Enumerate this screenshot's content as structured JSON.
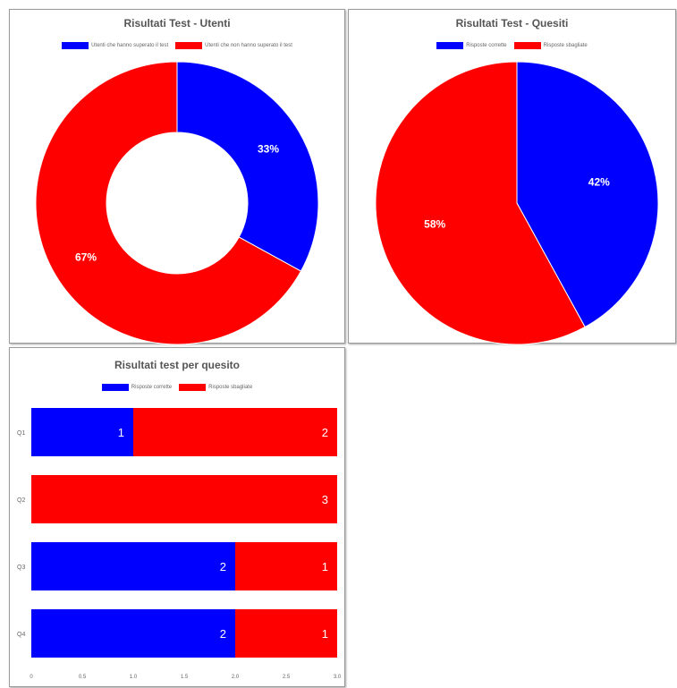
{
  "colors": {
    "blue": "#0000ff",
    "red": "#ff0000"
  },
  "chart_data": [
    {
      "type": "pie",
      "variant": "doughnut",
      "title": "Risultati Test - Utenti",
      "labels": [
        "Utenti che hanno superato il test",
        "Utenti che non hanno superato il test"
      ],
      "values": [
        33,
        67
      ],
      "value_labels": [
        "33%",
        "67%"
      ],
      "colors": [
        "#0000ff",
        "#ff0000"
      ],
      "legend": "top"
    },
    {
      "type": "pie",
      "title": "Risultati Test - Quesiti",
      "labels": [
        "Risposte corrette",
        "Risposte sbagliate"
      ],
      "values": [
        42,
        58
      ],
      "value_labels": [
        "42%",
        "58%"
      ],
      "colors": [
        "#0000ff",
        "#ff0000"
      ],
      "legend": "top"
    },
    {
      "type": "bar",
      "orientation": "horizontal",
      "stacked": true,
      "title": "Risultati test per quesito",
      "categories": [
        "Q1",
        "Q2",
        "Q3",
        "Q4"
      ],
      "series": [
        {
          "name": "Risposte corrette",
          "values": [
            1,
            0,
            2,
            2
          ],
          "color": "#0000ff"
        },
        {
          "name": "Risposte sbagliate",
          "values": [
            2,
            3,
            1,
            1
          ],
          "color": "#ff0000"
        }
      ],
      "xlim": [
        0,
        3
      ],
      "xticks": [
        "0",
        "0.5",
        "1.0",
        "1.5",
        "2.0",
        "2.5",
        "3.0"
      ],
      "legend": "top"
    }
  ]
}
